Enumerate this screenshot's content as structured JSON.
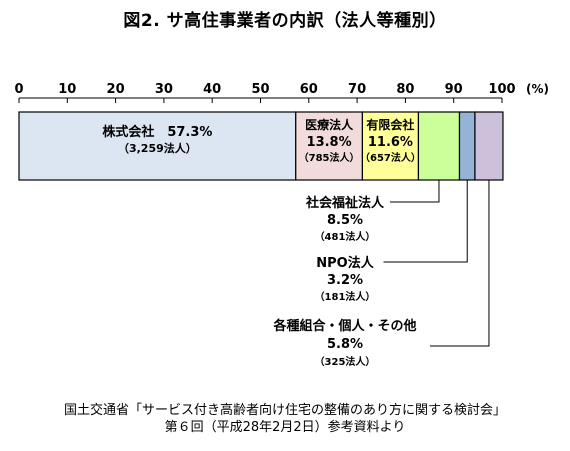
{
  "title": "図2. サ高住事業者の内訳（法人等種別）",
  "chart_data": {
    "type": "bar",
    "orientation": "horizontal-stacked",
    "xlim": [
      0,
      100
    ],
    "ticks": [
      0,
      10,
      20,
      30,
      40,
      50,
      60,
      70,
      80,
      90,
      100
    ],
    "unit_label": "(%)",
    "segments": [
      {
        "name": "株式会社",
        "value": 57.3,
        "percent_label": "57.3%",
        "count_label": "（3,259法人）",
        "color": "#dce6f2",
        "label_placement": "inside"
      },
      {
        "name": "医療法人",
        "value": 13.8,
        "percent_label": "13.8%",
        "count_label": "（785法人）",
        "color": "#f2dcdb",
        "label_placement": "inside"
      },
      {
        "name": "有限会社",
        "value": 11.6,
        "percent_label": "11.6%",
        "count_label": "（657法人）",
        "color": "#ffff99",
        "label_placement": "inside"
      },
      {
        "name": "社会福祉法人",
        "value": 8.5,
        "percent_label": "8.5%",
        "count_label": "（481法人）",
        "color": "#ccff99",
        "label_placement": "callout"
      },
      {
        "name": "NPO法人",
        "value": 3.2,
        "percent_label": "3.2%",
        "count_label": "（181法人）",
        "color": "#95b3d7",
        "label_placement": "callout"
      },
      {
        "name": "各種組合・個人・その他",
        "value": 5.8,
        "percent_label": "5.8%",
        "count_label": "（325法人）",
        "color": "#ccc0da",
        "label_placement": "callout"
      }
    ]
  },
  "source": {
    "line1": "国土交通省「サービス付き高齢者向け住宅の整備のあり方に関する検討会」",
    "line2": "第６回（平成28年2月2日）参考資料より"
  }
}
